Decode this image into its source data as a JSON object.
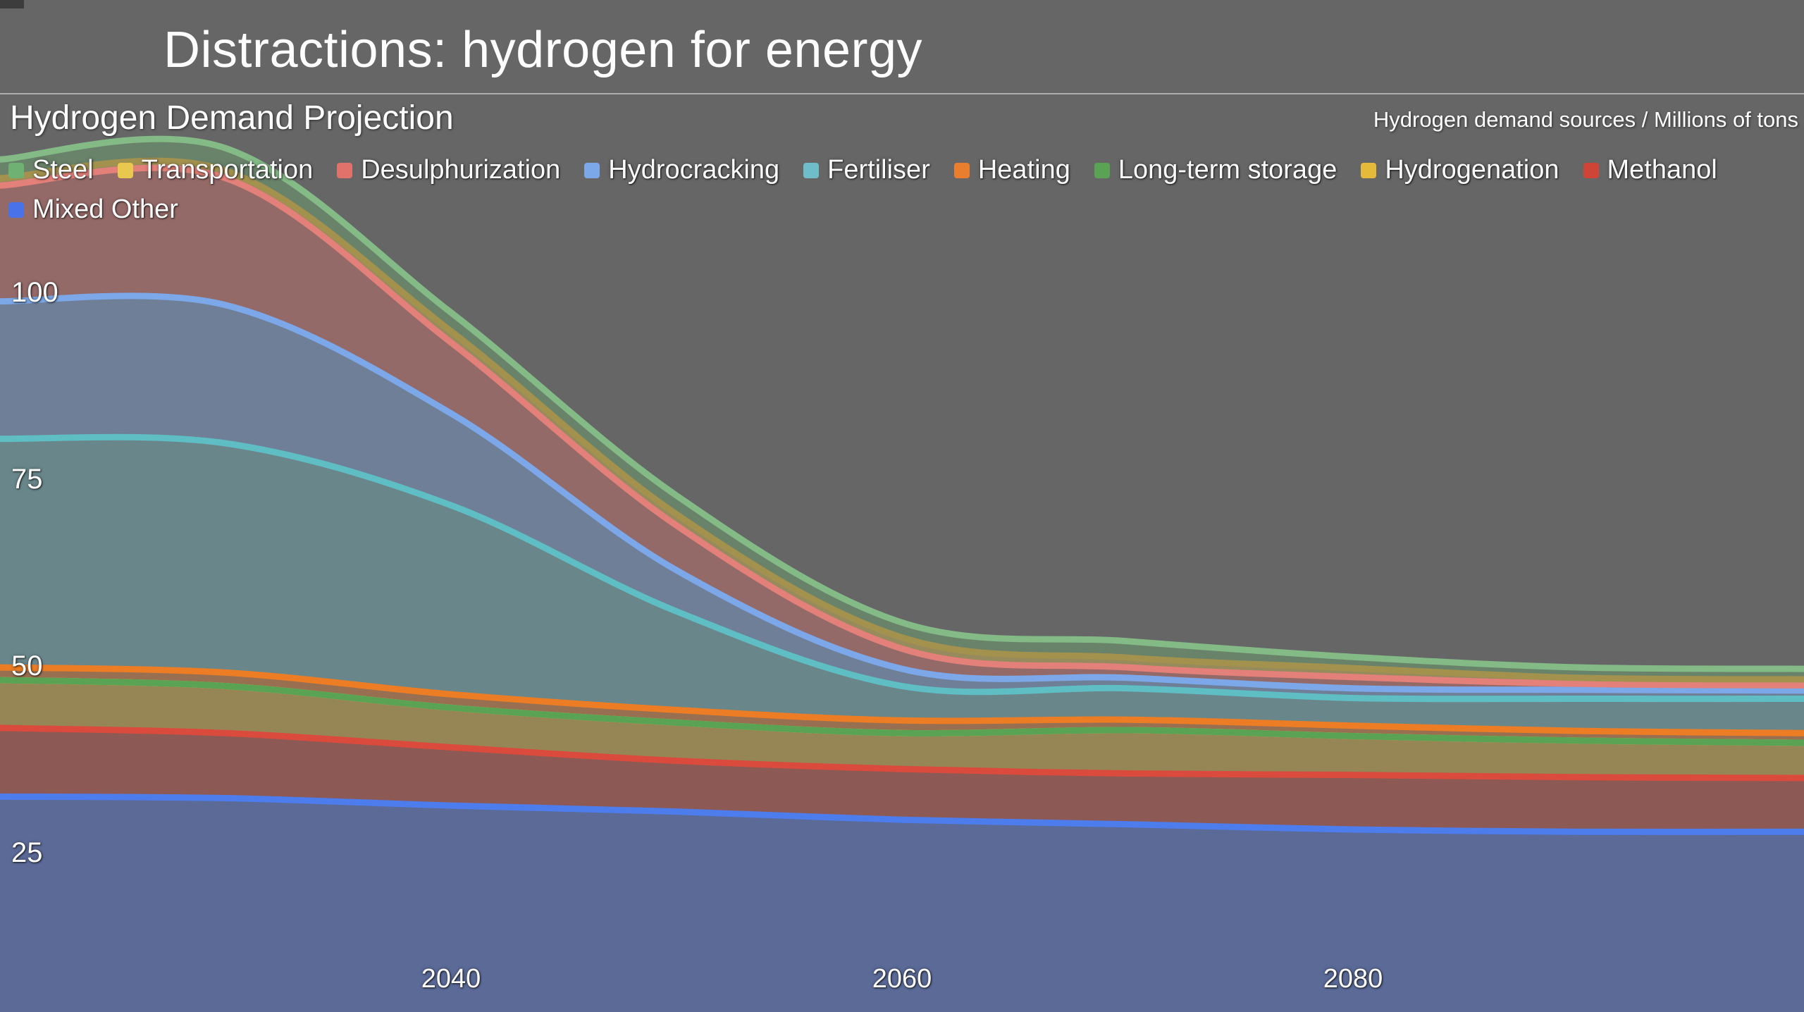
{
  "page": {
    "title": "Distractions: hydrogen for energy"
  },
  "chart": {
    "title": "Hydrogen Demand Projection",
    "units_label": "Hydrogen demand sources / Millions of tons",
    "background_color": "#666667"
  },
  "chart_data": {
    "type": "area",
    "stacked": true,
    "stack_order": "first series listed is the top band, last series is the bottom band",
    "x": [
      2020,
      2030,
      2040,
      2050,
      2060,
      2070,
      2080,
      2090,
      2100
    ],
    "xlim": [
      2020,
      2100
    ],
    "x_ticks": [
      2040,
      2060,
      2080
    ],
    "y_ticks": [
      100,
      75,
      50,
      25
    ],
    "ylim_visible": [
      4,
      139
    ],
    "grid": false,
    "legend_position": "top-left, two rows, overlaying plot",
    "title": "Hydrogen Demand Projection",
    "ylabel": "Hydrogen demand sources / Millions of tons",
    "xlabel": "",
    "series": [
      {
        "name": "Steel",
        "color": "#6fb172",
        "line_color": "#83ba86",
        "values": [
          2.5,
          3.0,
          2.5,
          2.5,
          2.0,
          2.2,
          1.5,
          1.4,
          1.4
        ]
      },
      {
        "name": "Transportation",
        "color": "#e8c84f",
        "line_color": "#a3914e",
        "values": [
          1.0,
          1.0,
          1.5,
          1.5,
          1.5,
          1.3,
          1.2,
          0.8,
          0.8
        ]
      },
      {
        "name": "Desulphurization",
        "color": "#e0726b",
        "line_color": "#e28079",
        "values": [
          15.5,
          17.0,
          9.5,
          6.0,
          2.7,
          1.4,
          1.5,
          0.8,
          0.7
        ]
      },
      {
        "name": "Hydrocracking",
        "color": "#7ca7e8",
        "line_color": "#7ca7e8",
        "values": [
          18.4,
          18.5,
          12.3,
          5.5,
          2.3,
          1.4,
          1.3,
          1.2,
          1.1
        ]
      },
      {
        "name": "Fertiliser",
        "color": "#6fbdc9",
        "line_color": "#5fbdc4",
        "values": [
          30.6,
          30.7,
          25.3,
          13.2,
          4.6,
          4.2,
          3.7,
          4.3,
          4.6
        ]
      },
      {
        "name": "Heating",
        "color": "#e97e2e",
        "line_color": "#ec7d24",
        "values": [
          1.7,
          1.8,
          1.8,
          1.7,
          1.7,
          1.4,
          1.4,
          1.3,
          1.3
        ]
      },
      {
        "name": "Long-term storage",
        "color": "#5aa355",
        "line_color": "#5aa355",
        "values": [
          0,
          0,
          0,
          0,
          0,
          0,
          0,
          0,
          0
        ]
      },
      {
        "name": "Hydrogenation",
        "color": "#e5ba3a",
        "line_color": "#efc13b",
        "values": [
          6.4,
          6.3,
          5.3,
          5.1,
          4.8,
          5.8,
          5.2,
          4.9,
          4.7
        ]
      },
      {
        "name": "Methanol",
        "color": "#ce4537",
        "line_color": "#da4b3d",
        "values": [
          9.2,
          8.7,
          7.8,
          6.8,
          6.8,
          6.8,
          7.3,
          7.3,
          7.2
        ]
      },
      {
        "name": "Mixed Other",
        "color": "#4a72e8",
        "line_color": "#4d7cec",
        "values": [
          32.7,
          32.5,
          31.5,
          30.7,
          29.6,
          29.0,
          28.3,
          28.0,
          28.0
        ]
      }
    ]
  }
}
